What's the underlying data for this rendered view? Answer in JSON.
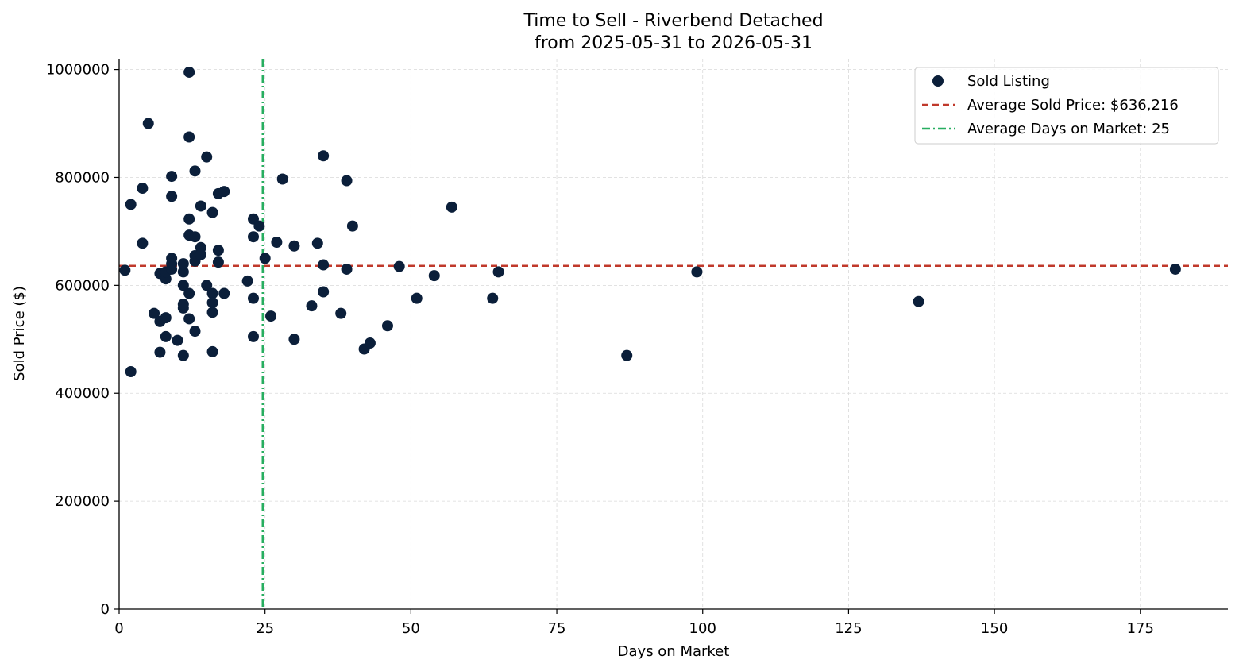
{
  "chart_data": {
    "type": "scatter",
    "title": "Time to Sell - Riverbend Detached",
    "subtitle": "from 2025-05-31 to 2026-05-31",
    "xlabel": "Days on Market",
    "ylabel": "Sold Price ($)",
    "xlim": [
      0,
      190
    ],
    "ylim": [
      0,
      1020000
    ],
    "xticks": [
      0,
      25,
      50,
      75,
      100,
      125,
      150,
      175
    ],
    "yticks": [
      0,
      200000,
      400000,
      600000,
      800000,
      1000000
    ],
    "grid": true,
    "legend_position": "top-right",
    "colors": {
      "points": "#0b1f3a",
      "avg_price_line": "#c0392b",
      "avg_days_line": "#27ae60"
    },
    "series": [
      {
        "name": "Sold Listing",
        "points": [
          [
            1,
            628000
          ],
          [
            2,
            750000
          ],
          [
            2,
            440000
          ],
          [
            4,
            780000
          ],
          [
            4,
            678000
          ],
          [
            5,
            900000
          ],
          [
            6,
            548000
          ],
          [
            7,
            622000
          ],
          [
            7,
            533000
          ],
          [
            7,
            476000
          ],
          [
            8,
            540000
          ],
          [
            8,
            505000
          ],
          [
            8,
            612000
          ],
          [
            8,
            625000
          ],
          [
            9,
            650000
          ],
          [
            9,
            640000
          ],
          [
            9,
            630000
          ],
          [
            9,
            802000
          ],
          [
            9,
            765000
          ],
          [
            10,
            498000
          ],
          [
            11,
            470000
          ],
          [
            11,
            558000
          ],
          [
            11,
            565000
          ],
          [
            11,
            600000
          ],
          [
            11,
            625000
          ],
          [
            11,
            640000
          ],
          [
            12,
            995000
          ],
          [
            12,
            875000
          ],
          [
            12,
            723000
          ],
          [
            12,
            693000
          ],
          [
            12,
            585000
          ],
          [
            12,
            538000
          ],
          [
            13,
            812000
          ],
          [
            13,
            690000
          ],
          [
            13,
            655000
          ],
          [
            13,
            645000
          ],
          [
            13,
            515000
          ],
          [
            14,
            747000
          ],
          [
            14,
            670000
          ],
          [
            14,
            657000
          ],
          [
            15,
            838000
          ],
          [
            15,
            600000
          ],
          [
            16,
            735000
          ],
          [
            16,
            585000
          ],
          [
            16,
            568000
          ],
          [
            16,
            550000
          ],
          [
            16,
            477000
          ],
          [
            17,
            770000
          ],
          [
            17,
            665000
          ],
          [
            17,
            643000
          ],
          [
            18,
            774000
          ],
          [
            18,
            585000
          ],
          [
            22,
            608000
          ],
          [
            23,
            723000
          ],
          [
            23,
            690000
          ],
          [
            23,
            576000
          ],
          [
            23,
            505000
          ],
          [
            24,
            710000
          ],
          [
            25,
            650000
          ],
          [
            26,
            543000
          ],
          [
            27,
            680000
          ],
          [
            28,
            797000
          ],
          [
            30,
            673000
          ],
          [
            30,
            500000
          ],
          [
            33,
            562000
          ],
          [
            34,
            678000
          ],
          [
            35,
            840000
          ],
          [
            35,
            638000
          ],
          [
            35,
            588000
          ],
          [
            38,
            548000
          ],
          [
            39,
            794000
          ],
          [
            39,
            630000
          ],
          [
            40,
            710000
          ],
          [
            42,
            482000
          ],
          [
            43,
            493000
          ],
          [
            46,
            525000
          ],
          [
            48,
            635000
          ],
          [
            51,
            576000
          ],
          [
            54,
            618000
          ],
          [
            57,
            745000
          ],
          [
            64,
            576000
          ],
          [
            65,
            625000
          ],
          [
            87,
            470000
          ],
          [
            99,
            625000
          ],
          [
            137,
            570000
          ],
          [
            181,
            630000
          ]
        ]
      }
    ],
    "reference_lines": {
      "avg_price": {
        "label": "Average Sold Price: $636,216",
        "value": 636216
      },
      "avg_days": {
        "label": "Average Days on Market: 25",
        "value": 24.6
      }
    }
  }
}
